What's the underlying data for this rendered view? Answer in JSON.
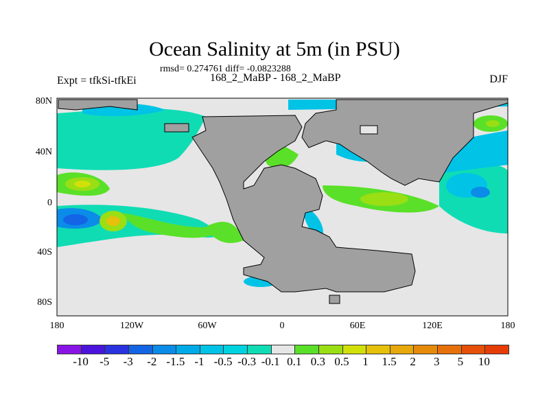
{
  "title": "Ocean Salinity at 5m (in PSU)",
  "subtitle_stats": "rmsd= 0.274761 diff= -0.0823288",
  "subtitle_runs": "168_2_MaBP - 168_2_MaBP",
  "left_label": "Expt = tfkSi-tfkEi",
  "right_label": "DJF",
  "lat_ticks": [
    "80N",
    "40N",
    "0",
    "40S",
    "80S"
  ],
  "lon_ticks": [
    "180",
    "120W",
    "60W",
    "0",
    "60E",
    "120E",
    "180"
  ],
  "colorbar": {
    "labels": [
      "-10",
      "-5",
      "-3",
      "-2",
      "-1.5",
      "-1",
      "-0.5",
      "-0.3",
      "-0.1",
      "0.1",
      "0.3",
      "0.5",
      "1",
      "1.5",
      "2",
      "3",
      "5",
      "10"
    ],
    "colors": [
      "#8a14e6",
      "#4a14dc",
      "#2a32e0",
      "#1464e6",
      "#0a8ce8",
      "#00aae8",
      "#00c3e6",
      "#00d2e0",
      "#10dcb4",
      "#e6e6e6",
      "#5ae028",
      "#9ade14",
      "#d2e00a",
      "#e6c00a",
      "#e6a80a",
      "#e68a0a",
      "#e6700a",
      "#e65008",
      "#e63c06"
    ]
  },
  "colors": {
    "land": "#a0a0a0",
    "ocean_neutral": "#e6e6e6"
  }
}
